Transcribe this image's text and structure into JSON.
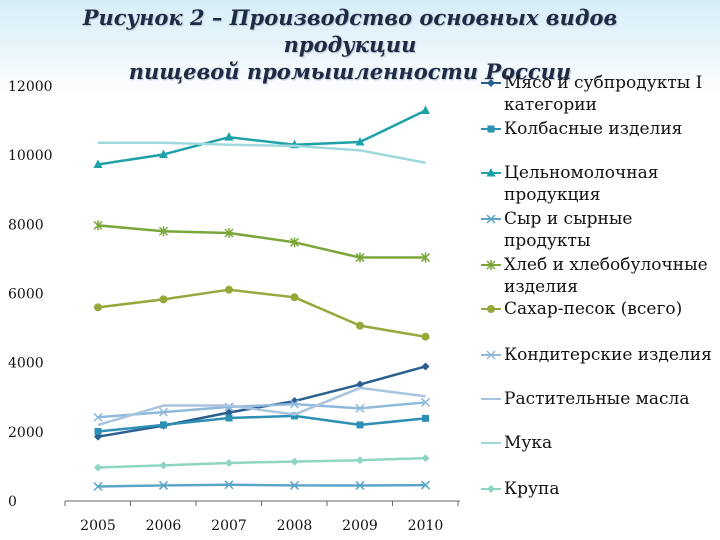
{
  "title": {
    "line1": "Рисунок 2 – Производство основных видов продукции",
    "line2": "пищевой промышленности России"
  },
  "chart_data": {
    "type": "line",
    "title": "Рисунок 2 – Производство основных видов продукции пищевой промышленности России",
    "xlabel": "",
    "ylabel": "",
    "x": [
      "2005",
      "2006",
      "2007",
      "2008",
      "2009",
      "2010"
    ],
    "ylim": [
      0,
      12000
    ],
    "yticks": [
      "0",
      "2000",
      "4000",
      "6000",
      "8000",
      "10000",
      "12000"
    ],
    "grid": false,
    "legend_position": "right",
    "series": [
      {
        "name": "Мясо и субпродукты I категории",
        "color": "#2a5f8f",
        "marker": "diamond",
        "values": [
          1860,
          2180,
          2560,
          2890,
          3370,
          3890
        ]
      },
      {
        "name": "Колбасные изделия",
        "color": "#2e8fb5",
        "marker": "square",
        "values": [
          2010,
          2200,
          2400,
          2460,
          2200,
          2390
        ]
      },
      {
        "name": "Цельномолочная продукция",
        "color": "#1fa1a8",
        "marker": "triangle",
        "values": [
          9730,
          10020,
          10520,
          10300,
          10380,
          11290
        ]
      },
      {
        "name": "Сыр и сырные продукты",
        "color": "#5aa4c8",
        "marker": "x",
        "values": [
          420,
          450,
          470,
          450,
          450,
          460
        ]
      },
      {
        "name": "Хлеб и хлебобулочные изделия",
        "color": "#7aa63a",
        "marker": "star",
        "values": [
          7970,
          7800,
          7750,
          7480,
          7040,
          7040
        ]
      },
      {
        "name": "Сахар-песок (всего)",
        "color": "#94a83c",
        "marker": "circle",
        "values": [
          5600,
          5830,
          6110,
          5890,
          5070,
          4750
        ]
      },
      {
        "name": "Кондитерские изделия",
        "color": "#90b8da",
        "marker": "x",
        "values": [
          2420,
          2570,
          2720,
          2800,
          2680,
          2850
        ]
      },
      {
        "name": "Растительные масла",
        "color": "#a9c4de",
        "marker": "dash",
        "values": [
          2200,
          2760,
          2760,
          2500,
          3270,
          3030
        ]
      },
      {
        "name": "Мука",
        "color": "#9fd9dc",
        "marker": "dash",
        "values": [
          10360,
          10360,
          10300,
          10270,
          10140,
          9780
        ]
      },
      {
        "name": "Крупа",
        "color": "#8fd6c2",
        "marker": "diamond",
        "values": [
          970,
          1030,
          1100,
          1140,
          1180,
          1240
        ]
      }
    ]
  }
}
